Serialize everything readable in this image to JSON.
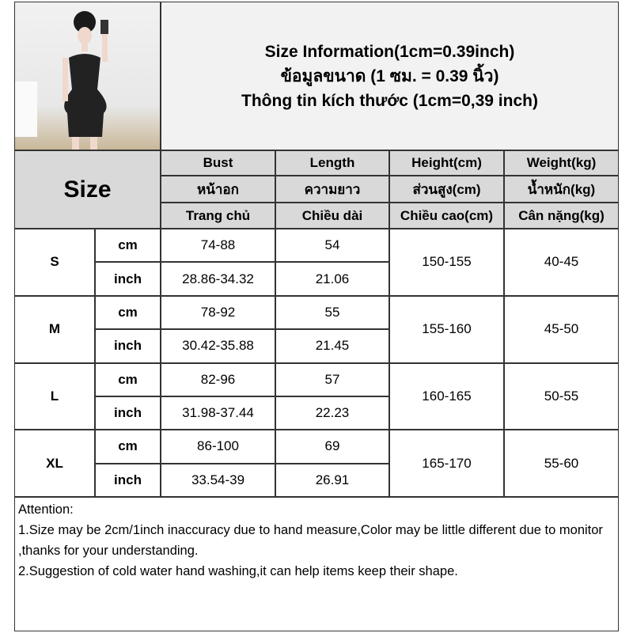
{
  "title": {
    "line1": "Size Information(1cm=0.39inch)",
    "line2": "ข้อมูลขนาด (1 ซม. = 0.39 นิ้ว)",
    "line3": "Thông tin kích thước (1cm=0,39 inch)"
  },
  "size_label": "Size",
  "headers": [
    {
      "en": "Bust",
      "th": "หน้าอก",
      "vi": "Trang chủ"
    },
    {
      "en": "Length",
      "th": "ความยาว",
      "vi": "Chiều dài"
    },
    {
      "en": "Height(cm)",
      "th": "ส่วนสูง(cm)",
      "vi": "Chiều cao(cm)"
    },
    {
      "en": "Weight(kg)",
      "th": "น้ำหนัก(kg)",
      "vi": "Cân nặng(kg)"
    }
  ],
  "units": {
    "cm": "cm",
    "inch": "inch"
  },
  "rows": [
    {
      "size": "S",
      "bust_cm": "74-88",
      "length_cm": "54",
      "bust_inch": "28.86-34.32",
      "length_inch": "21.06",
      "height": "150-155",
      "weight": "40-45"
    },
    {
      "size": "M",
      "bust_cm": "78-92",
      "length_cm": "55",
      "bust_inch": "30.42-35.88",
      "length_inch": "21.45",
      "height": "155-160",
      "weight": "45-50"
    },
    {
      "size": "L",
      "bust_cm": "82-96",
      "length_cm": "57",
      "bust_inch": "31.98-37.44",
      "length_inch": "22.23",
      "height": "160-165",
      "weight": "50-55"
    },
    {
      "size": "XL",
      "bust_cm": "86-100",
      "length_cm": "69",
      "bust_inch": "33.54-39",
      "length_inch": "26.91",
      "height": "165-170",
      "weight": "55-60"
    }
  ],
  "attention": {
    "heading": "Attention:",
    "note1": "1.Size may be 2cm/1inch inaccuracy due to hand measure,Color may be little different due to monitor ,thanks for your understanding.",
    "note2": "2.Suggestion of cold water hand washing,it can help items keep their shape."
  }
}
